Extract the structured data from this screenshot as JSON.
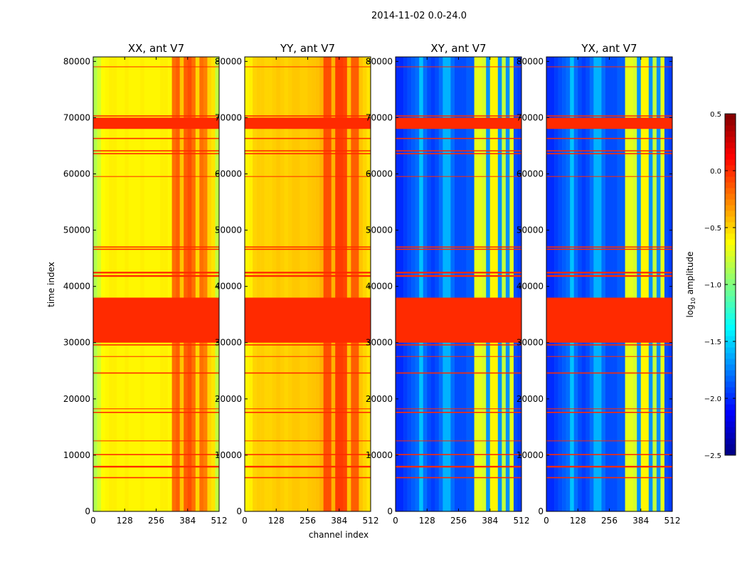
{
  "chart_data": {
    "type": "heatmap",
    "title": "2014-11-02 0.0-24.0",
    "xlabel": "channel index",
    "ylabel": "time index",
    "xlim": [
      0,
      512
    ],
    "ylim": [
      0,
      80800
    ],
    "xticks": [
      0,
      128,
      256,
      384,
      512
    ],
    "yticks": [
      0,
      10000,
      20000,
      30000,
      40000,
      50000,
      60000,
      70000,
      80000
    ],
    "channel_bin_width": 16,
    "colorbar": {
      "label": "log10 amplitude",
      "label_main": "log",
      "label_sub": "10",
      "label_rest": " amplitude",
      "range": [
        -2.5,
        0.5
      ],
      "ticks": [
        "0.5",
        "0.0",
        "-0.5",
        "-1.0",
        "-1.5",
        "-2.0",
        "-2.5"
      ],
      "tick_values": [
        0.5,
        0.0,
        -0.5,
        -1.0,
        -1.5,
        -2.0,
        -2.5
      ],
      "colormap": "jet"
    },
    "flagged_value": 0.0,
    "flagged_time_ranges": [
      [
        30000,
        38000
      ],
      [
        68000,
        70000
      ],
      [
        41700,
        42000
      ],
      [
        42300,
        42600
      ],
      [
        46500,
        46700
      ],
      [
        46900,
        47100
      ],
      [
        63500,
        63700
      ],
      [
        64000,
        64200
      ],
      [
        70200,
        70400
      ],
      [
        59500,
        59600
      ],
      [
        10000,
        10200
      ],
      [
        7800,
        8100
      ],
      [
        5900,
        6100
      ],
      [
        17500,
        17700
      ],
      [
        18200,
        18300
      ],
      [
        24500,
        24700
      ],
      [
        29500,
        29700
      ],
      [
        27500,
        27600
      ],
      [
        12500,
        12600
      ],
      [
        79000,
        79100
      ],
      [
        66200,
        66400
      ]
    ],
    "panels": [
      {
        "title": "XX, ant V7",
        "column_profile": [
          -0.85,
          -0.75,
          -0.62,
          -0.6,
          -0.58,
          -0.58,
          -0.6,
          -0.6,
          -0.58,
          -0.6,
          -0.6,
          -0.6,
          -0.58,
          -0.6,
          -0.6,
          -0.6,
          -0.6,
          -0.58,
          -0.58,
          -0.6,
          -0.2,
          -0.15,
          -0.45,
          -0.15,
          -0.1,
          -0.2,
          -0.5,
          -0.2,
          -0.25,
          -0.5,
          -0.55,
          -0.8
        ]
      },
      {
        "title": "YY, ant V7",
        "column_profile": [
          -0.6,
          -0.58,
          -0.5,
          -0.48,
          -0.48,
          -0.5,
          -0.5,
          -0.48,
          -0.46,
          -0.48,
          -0.5,
          -0.48,
          -0.46,
          -0.46,
          -0.48,
          -0.48,
          -0.46,
          -0.45,
          -0.44,
          -0.4,
          -0.1,
          -0.1,
          -0.4,
          -0.05,
          -0.05,
          -0.08,
          -0.45,
          -0.15,
          -0.15,
          -0.45,
          -0.5,
          -0.55
        ]
      },
      {
        "title": "XY, ant V7",
        "column_profile": [
          -2.0,
          -2.0,
          -1.95,
          -1.9,
          -1.85,
          -1.8,
          -1.55,
          -1.8,
          -1.9,
          -1.95,
          -1.9,
          -1.8,
          -1.6,
          -1.6,
          -1.8,
          -1.9,
          -1.9,
          -1.9,
          -1.85,
          -1.85,
          -0.7,
          -0.7,
          -0.75,
          -1.7,
          -0.6,
          -0.6,
          -1.7,
          -0.8,
          -1.7,
          -0.7,
          -1.9,
          -1.95
        ]
      },
      {
        "title": "YX, ant V7",
        "column_profile": [
          -2.0,
          -2.0,
          -1.95,
          -1.9,
          -1.85,
          -1.8,
          -1.55,
          -1.8,
          -1.9,
          -1.95,
          -1.9,
          -1.8,
          -1.6,
          -1.6,
          -1.8,
          -1.9,
          -1.9,
          -1.9,
          -1.85,
          -1.85,
          -0.7,
          -0.7,
          -0.75,
          -1.7,
          -0.6,
          -0.6,
          -1.7,
          -0.8,
          -1.7,
          -0.7,
          -1.9,
          -1.95
        ]
      }
    ]
  }
}
